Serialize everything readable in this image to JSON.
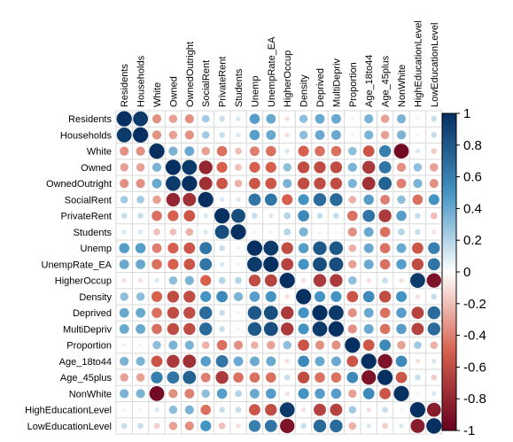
{
  "chart_data": {
    "type": "heatmap",
    "method": "circle",
    "variables": [
      "Residents",
      "Households",
      "White",
      "Owned",
      "OwnedOutright",
      "SocialRent",
      "PrivateRent",
      "Students",
      "Unemp",
      "UnempRate_EA",
      "HigherOccup",
      "Density",
      "Deprived",
      "MultiDepriv",
      "Proportion",
      "Age_18to44",
      "Age_45plus",
      "NonWhite",
      "HighEducationLevel",
      "LowEducationLevel"
    ],
    "matrix": [
      [
        1,
        0.95,
        -0.35,
        -0.3,
        -0.35,
        0.25,
        0.15,
        0.1,
        0.45,
        0.4,
        -0.1,
        0.3,
        0.4,
        0.4,
        -0.05,
        0.35,
        -0.3,
        0.35,
        -0.05,
        0.15
      ],
      [
        0.95,
        1,
        -0.35,
        -0.3,
        -0.35,
        0.25,
        0.15,
        0.1,
        0.45,
        0.4,
        -0.1,
        0.3,
        0.4,
        0.4,
        -0.05,
        0.35,
        -0.3,
        0.35,
        -0.05,
        0.15
      ],
      [
        -0.35,
        -0.35,
        1,
        0.35,
        0.4,
        -0.3,
        -0.45,
        -0.2,
        -0.4,
        -0.45,
        0.1,
        -0.5,
        -0.45,
        -0.45,
        0.3,
        -0.55,
        0.6,
        -0.95,
        0.1,
        -0.15
      ],
      [
        -0.3,
        -0.3,
        0.35,
        1,
        0.95,
        -0.8,
        -0.5,
        -0.2,
        -0.5,
        -0.5,
        0.3,
        -0.6,
        -0.6,
        -0.6,
        0.35,
        -0.7,
        0.65,
        -0.35,
        0.3,
        -0.3
      ],
      [
        -0.35,
        -0.35,
        0.4,
        0.95,
        1,
        -0.75,
        -0.55,
        -0.25,
        -0.55,
        -0.55,
        0.35,
        -0.6,
        -0.6,
        -0.6,
        0.35,
        -0.75,
        0.75,
        -0.4,
        0.35,
        -0.35
      ],
      [
        0.25,
        0.25,
        -0.3,
        -0.8,
        -0.75,
        1,
        0.1,
        0.1,
        0.65,
        0.65,
        -0.5,
        0.5,
        0.7,
        0.7,
        -0.25,
        0.45,
        -0.4,
        0.3,
        -0.45,
        0.5
      ],
      [
        0.15,
        0.15,
        -0.45,
        -0.5,
        -0.55,
        0.1,
        1,
        0.85,
        0.15,
        0.1,
        0.2,
        0.55,
        0.15,
        0.15,
        -0.45,
        0.65,
        -0.7,
        0.45,
        0.15,
        -0.2
      ],
      [
        0.1,
        0.1,
        -0.2,
        -0.2,
        -0.25,
        0.1,
        0.85,
        1,
        0.05,
        0.05,
        0.2,
        0.35,
        0.05,
        0.05,
        -0.35,
        0.4,
        -0.45,
        0.2,
        0.15,
        -0.1
      ],
      [
        0.45,
        0.45,
        -0.4,
        -0.5,
        -0.55,
        0.65,
        0.15,
        0.05,
        1,
        0.95,
        -0.6,
        0.45,
        0.8,
        0.8,
        -0.25,
        0.4,
        -0.45,
        0.4,
        -0.55,
        0.6
      ],
      [
        0.4,
        0.4,
        -0.45,
        -0.5,
        -0.55,
        0.65,
        0.1,
        0.05,
        0.95,
        1,
        -0.65,
        0.5,
        0.85,
        0.85,
        -0.3,
        0.4,
        -0.45,
        0.45,
        -0.6,
        0.65
      ],
      [
        -0.1,
        -0.1,
        0.1,
        0.3,
        0.35,
        -0.5,
        0.2,
        0.2,
        -0.6,
        -0.65,
        1,
        -0.1,
        -0.7,
        -0.7,
        0.3,
        -0.1,
        0.15,
        -0.1,
        0.95,
        -0.9
      ],
      [
        0.3,
        0.3,
        -0.5,
        -0.6,
        -0.6,
        0.5,
        0.55,
        0.35,
        0.45,
        0.5,
        -0.1,
        1,
        0.5,
        0.5,
        -0.55,
        0.55,
        -0.6,
        0.5,
        -0.1,
        0.15
      ],
      [
        0.4,
        0.4,
        -0.45,
        -0.6,
        -0.6,
        0.7,
        0.15,
        0.05,
        0.8,
        0.85,
        -0.7,
        0.5,
        1,
        0.95,
        -0.35,
        0.4,
        -0.45,
        0.45,
        -0.65,
        0.7
      ],
      [
        0.4,
        0.4,
        -0.45,
        -0.6,
        -0.6,
        0.7,
        0.15,
        0.05,
        0.8,
        0.85,
        -0.7,
        0.5,
        0.95,
        1,
        -0.35,
        0.4,
        -0.45,
        0.45,
        -0.65,
        0.7
      ],
      [
        -0.05,
        -0.05,
        0.3,
        0.35,
        0.35,
        -0.25,
        -0.45,
        -0.35,
        -0.25,
        -0.3,
        0.3,
        -0.55,
        -0.35,
        -0.35,
        1,
        -0.55,
        0.55,
        -0.3,
        0.25,
        -0.25
      ],
      [
        0.35,
        0.35,
        -0.55,
        -0.7,
        -0.75,
        0.45,
        0.65,
        0.4,
        0.4,
        0.4,
        -0.1,
        0.55,
        0.4,
        0.4,
        -0.55,
        1,
        -0.9,
        0.55,
        -0.1,
        0.1
      ],
      [
        -0.3,
        -0.3,
        0.6,
        0.65,
        0.75,
        -0.4,
        -0.7,
        -0.45,
        -0.45,
        -0.45,
        0.15,
        -0.6,
        -0.45,
        -0.45,
        0.55,
        -0.9,
        1,
        -0.55,
        0.15,
        -0.15
      ],
      [
        0.35,
        0.35,
        -0.95,
        -0.35,
        -0.4,
        0.3,
        0.45,
        0.2,
        0.4,
        0.45,
        -0.1,
        0.5,
        0.45,
        0.45,
        -0.3,
        0.55,
        -0.55,
        1,
        -0.05,
        0.1
      ],
      [
        -0.05,
        -0.05,
        0.1,
        0.3,
        0.35,
        -0.45,
        0.15,
        0.15,
        -0.55,
        -0.6,
        0.95,
        -0.1,
        -0.65,
        -0.65,
        0.25,
        -0.1,
        0.15,
        -0.05,
        1,
        -0.85
      ],
      [
        0.15,
        0.15,
        -0.15,
        -0.3,
        -0.35,
        0.5,
        -0.2,
        -0.1,
        0.6,
        0.65,
        -0.9,
        0.15,
        0.7,
        0.7,
        -0.25,
        0.1,
        -0.15,
        0.1,
        -0.85,
        1
      ]
    ],
    "colorbar": {
      "range": [
        -1,
        1
      ],
      "ticks": [
        "1",
        "0.8",
        "0.6",
        "0.4",
        "0.2",
        "0",
        "-0.2",
        "-0.4",
        "-0.6",
        "-0.8",
        "-1"
      ],
      "colors": {
        "negative": "#67001F",
        "mid_negative": "#D6604D",
        "zero": "#FFFFFF",
        "mid_positive": "#4393C3",
        "positive": "#053061"
      }
    },
    "grid": true
  }
}
